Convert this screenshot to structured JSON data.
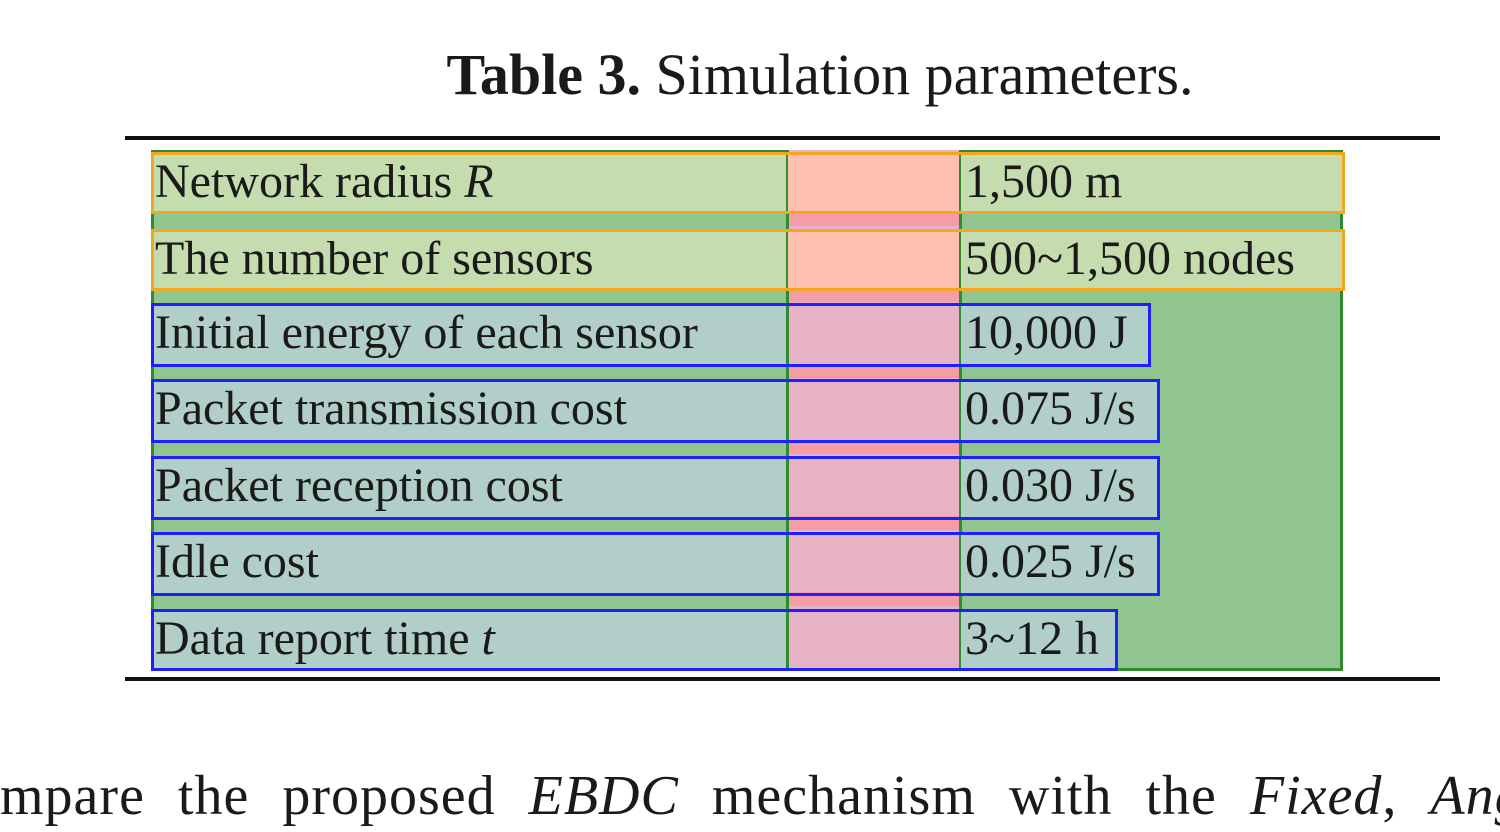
{
  "caption": {
    "label": "Table 3.",
    "text": "Simulation parameters."
  },
  "table": {
    "rows": [
      {
        "param": "Network radius ",
        "param_italic": "R",
        "value": "1,500 m"
      },
      {
        "param": "The number of sensors",
        "param_italic": "",
        "value": "500~1,500 nodes"
      },
      {
        "param": "Initial energy of each sensor",
        "param_italic": "",
        "value": "10,000 J"
      },
      {
        "param": "Packet transmission cost",
        "param_italic": "",
        "value": "0.075 J/s"
      },
      {
        "param": "Packet reception cost",
        "param_italic": "",
        "value": "0.030 J/s"
      },
      {
        "param": "Idle cost",
        "param_italic": "",
        "value": "0.025 J/s"
      },
      {
        "param": "Data report time ",
        "param_italic": "t",
        "value": "3~12 h"
      }
    ]
  },
  "body_text": {
    "part1": "mpare the proposed ",
    "em1": "EBDC",
    "part2": " mechanism with the ",
    "em2": "Fixed",
    "part3": ", ",
    "em3": "Ang"
  }
}
